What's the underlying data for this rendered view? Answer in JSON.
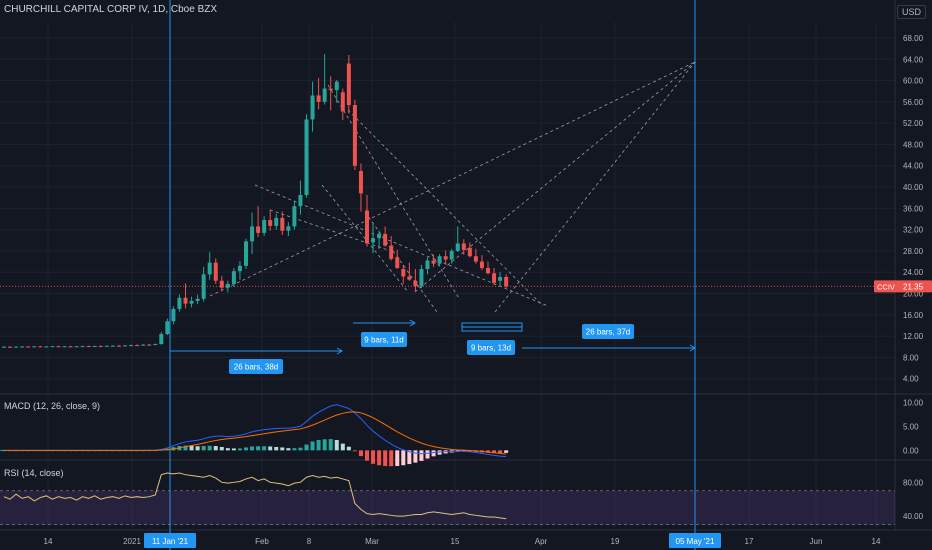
{
  "header": {
    "main_title": "CHURCHILL CAPITAL CORP IV, 1D, Cboe BZX",
    "currency": "USD",
    "macd_title": "MACD (12, 26, close, 9)",
    "rsi_title": "RSI (14, close)"
  },
  "price_badge": {
    "ticker": "CCIV",
    "price": "21.35"
  },
  "colors": {
    "background": "#131722",
    "grid": "#1e222d",
    "up": "#26a69a",
    "down": "#ef5350",
    "macd_line": "#2962ff",
    "signal_line": "#ff6d00",
    "rsi_line": "#e0c27a",
    "rsi_band": "#7e57c2",
    "measure": "#2196f3",
    "pattern_lines": "#b2b5be"
  },
  "measurements": [
    {
      "label": "26 bars, 38d"
    },
    {
      "label": "9 bars, 11d"
    },
    {
      "label": "9 bars, 13d"
    },
    {
      "label": "26 bars, 37d"
    }
  ],
  "chart_data": [
    {
      "type": "candlestick",
      "title": "CHURCHILL CAPITAL CORP IV, 1D, Cboe BZX",
      "y_axis": {
        "ticks": [
          "68.00",
          "64.00",
          "60.00",
          "56.00",
          "52.00",
          "48.00",
          "44.00",
          "40.00",
          "36.00",
          "32.00",
          "28.00",
          "24.00",
          "20.00",
          "16.00",
          "12.00",
          "8.00",
          "4.00"
        ],
        "range": [
          1.5,
          71
        ]
      },
      "x_axis": {
        "ticks": [
          "14",
          "2021",
          "11 Jan '21",
          "Feb",
          "8",
          "Mar",
          "15",
          "Apr",
          "19",
          "05 May '21",
          "17",
          "Jun",
          "14"
        ],
        "highlighted": [
          "11 Jan '21",
          "05 May '21"
        ]
      },
      "grid": true,
      "candles": [
        {
          "o": 9.95,
          "h": 10.1,
          "l": 9.85,
          "c": 10.0
        },
        {
          "o": 10.0,
          "h": 10.1,
          "l": 9.9,
          "c": 9.98
        },
        {
          "o": 9.98,
          "h": 10.08,
          "l": 9.9,
          "c": 10.02
        },
        {
          "o": 10.02,
          "h": 10.12,
          "l": 9.95,
          "c": 10.05
        },
        {
          "o": 10.05,
          "h": 10.1,
          "l": 9.95,
          "c": 10.0
        },
        {
          "o": 10.0,
          "h": 10.15,
          "l": 9.95,
          "c": 10.08
        },
        {
          "o": 10.08,
          "h": 10.15,
          "l": 9.98,
          "c": 10.03
        },
        {
          "o": 10.03,
          "h": 10.12,
          "l": 9.95,
          "c": 10.06
        },
        {
          "o": 10.06,
          "h": 10.15,
          "l": 10.0,
          "c": 10.1
        },
        {
          "o": 10.1,
          "h": 10.2,
          "l": 10.0,
          "c": 10.05
        },
        {
          "o": 10.05,
          "h": 10.15,
          "l": 9.98,
          "c": 10.08
        },
        {
          "o": 10.08,
          "h": 10.15,
          "l": 10.0,
          "c": 10.04
        },
        {
          "o": 10.04,
          "h": 10.15,
          "l": 9.98,
          "c": 10.09
        },
        {
          "o": 10.09,
          "h": 10.18,
          "l": 10.0,
          "c": 10.12
        },
        {
          "o": 10.12,
          "h": 10.2,
          "l": 10.02,
          "c": 10.06
        },
        {
          "o": 10.06,
          "h": 10.18,
          "l": 10.0,
          "c": 10.14
        },
        {
          "o": 10.14,
          "h": 10.25,
          "l": 10.05,
          "c": 10.1
        },
        {
          "o": 10.1,
          "h": 10.22,
          "l": 10.02,
          "c": 10.18
        },
        {
          "o": 10.18,
          "h": 10.3,
          "l": 10.1,
          "c": 10.2
        },
        {
          "o": 10.2,
          "h": 10.35,
          "l": 10.1,
          "c": 10.15
        },
        {
          "o": 10.15,
          "h": 10.3,
          "l": 10.08,
          "c": 10.25
        },
        {
          "o": 10.25,
          "h": 10.4,
          "l": 10.15,
          "c": 10.3
        },
        {
          "o": 10.3,
          "h": 10.45,
          "l": 10.2,
          "c": 10.28
        },
        {
          "o": 10.28,
          "h": 10.5,
          "l": 10.2,
          "c": 10.4
        },
        {
          "o": 10.4,
          "h": 10.55,
          "l": 10.3,
          "c": 10.35
        },
        {
          "o": 10.35,
          "h": 10.6,
          "l": 10.3,
          "c": 10.5
        },
        {
          "o": 10.5,
          "h": 12.8,
          "l": 10.4,
          "c": 12.4
        },
        {
          "o": 12.4,
          "h": 15.3,
          "l": 12.2,
          "c": 14.8
        },
        {
          "o": 14.8,
          "h": 17.6,
          "l": 14.2,
          "c": 17.1
        },
        {
          "o": 17.1,
          "h": 19.8,
          "l": 16.6,
          "c": 19.2
        },
        {
          "o": 19.2,
          "h": 21.9,
          "l": 17.2,
          "c": 18.1
        },
        {
          "o": 18.1,
          "h": 19.4,
          "l": 17.4,
          "c": 18.6
        },
        {
          "o": 18.6,
          "h": 19.8,
          "l": 18.0,
          "c": 19.0
        },
        {
          "o": 19.0,
          "h": 25.0,
          "l": 18.5,
          "c": 23.6
        },
        {
          "o": 23.6,
          "h": 27.8,
          "l": 22.6,
          "c": 25.8
        },
        {
          "o": 25.8,
          "h": 26.6,
          "l": 21.8,
          "c": 22.4
        },
        {
          "o": 22.4,
          "h": 23.3,
          "l": 20.4,
          "c": 21.1
        },
        {
          "o": 21.1,
          "h": 22.4,
          "l": 20.2,
          "c": 21.8
        },
        {
          "o": 21.8,
          "h": 24.8,
          "l": 21.2,
          "c": 24.2
        },
        {
          "o": 24.2,
          "h": 26.1,
          "l": 22.6,
          "c": 25.2
        },
        {
          "o": 25.2,
          "h": 30.3,
          "l": 24.6,
          "c": 29.8
        },
        {
          "o": 29.8,
          "h": 35.2,
          "l": 27.4,
          "c": 32.6
        },
        {
          "o": 32.6,
          "h": 36.4,
          "l": 30.6,
          "c": 31.4
        },
        {
          "o": 31.4,
          "h": 34.5,
          "l": 30.8,
          "c": 33.8
        },
        {
          "o": 33.8,
          "h": 35.8,
          "l": 31.8,
          "c": 32.7
        },
        {
          "o": 32.7,
          "h": 35.0,
          "l": 32.0,
          "c": 34.2
        },
        {
          "o": 34.2,
          "h": 35.4,
          "l": 31.0,
          "c": 31.8
        },
        {
          "o": 31.8,
          "h": 33.4,
          "l": 30.8,
          "c": 32.6
        },
        {
          "o": 32.6,
          "h": 37.5,
          "l": 32.0,
          "c": 36.4
        },
        {
          "o": 36.4,
          "h": 41.2,
          "l": 34.8,
          "c": 38.5
        },
        {
          "o": 38.5,
          "h": 53.7,
          "l": 38.0,
          "c": 52.7
        },
        {
          "o": 52.7,
          "h": 59.8,
          "l": 50.4,
          "c": 57.2
        },
        {
          "o": 57.2,
          "h": 60.5,
          "l": 54.6,
          "c": 56.0
        },
        {
          "o": 56.0,
          "h": 65.0,
          "l": 55.5,
          "c": 58.5
        },
        {
          "o": 58.5,
          "h": 60.8,
          "l": 54.4,
          "c": 58.2
        },
        {
          "o": 58.2,
          "h": 60.1,
          "l": 55.8,
          "c": 59.8
        },
        {
          "o": 57.8,
          "h": 58.5,
          "l": 52.6,
          "c": 54.2
        },
        {
          "o": 63.2,
          "h": 64.8,
          "l": 53.8,
          "c": 55.4
        },
        {
          "o": 55.4,
          "h": 56.4,
          "l": 43.2,
          "c": 44.0
        },
        {
          "o": 43.0,
          "h": 44.4,
          "l": 35.4,
          "c": 38.8
        },
        {
          "o": 35.6,
          "h": 38.5,
          "l": 28.8,
          "c": 29.4
        },
        {
          "o": 29.6,
          "h": 33.2,
          "l": 27.6,
          "c": 30.4
        },
        {
          "o": 30.4,
          "h": 31.8,
          "l": 28.4,
          "c": 31.2
        },
        {
          "o": 31.2,
          "h": 32.6,
          "l": 28.8,
          "c": 29.0
        },
        {
          "o": 29.0,
          "h": 30.8,
          "l": 26.2,
          "c": 26.5
        },
        {
          "o": 26.8,
          "h": 28.2,
          "l": 24.6,
          "c": 24.8
        },
        {
          "o": 24.6,
          "h": 25.4,
          "l": 21.8,
          "c": 23.2
        },
        {
          "o": 23.2,
          "h": 25.8,
          "l": 22.4,
          "c": 22.6
        },
        {
          "o": 22.4,
          "h": 24.6,
          "l": 20.4,
          "c": 21.4
        },
        {
          "o": 21.4,
          "h": 25.4,
          "l": 21.0,
          "c": 24.6
        },
        {
          "o": 24.6,
          "h": 26.8,
          "l": 23.6,
          "c": 26.2
        },
        {
          "o": 26.2,
          "h": 27.3,
          "l": 25.0,
          "c": 25.6
        },
        {
          "o": 25.6,
          "h": 27.4,
          "l": 25.2,
          "c": 27.0
        },
        {
          "o": 27.0,
          "h": 28.1,
          "l": 25.4,
          "c": 26.4
        },
        {
          "o": 26.4,
          "h": 28.4,
          "l": 25.6,
          "c": 28.0
        },
        {
          "o": 28.0,
          "h": 32.6,
          "l": 27.8,
          "c": 29.4
        },
        {
          "o": 29.4,
          "h": 30.2,
          "l": 27.3,
          "c": 28.2
        },
        {
          "o": 28.6,
          "h": 29.6,
          "l": 26.8,
          "c": 27.0
        },
        {
          "o": 27.0,
          "h": 28.4,
          "l": 25.6,
          "c": 26.0
        },
        {
          "o": 26.0,
          "h": 27.2,
          "l": 24.4,
          "c": 24.8
        },
        {
          "o": 24.8,
          "h": 26.0,
          "l": 23.6,
          "c": 23.8
        },
        {
          "o": 23.8,
          "h": 24.8,
          "l": 21.6,
          "c": 22.0
        },
        {
          "o": 22.4,
          "h": 24.0,
          "l": 21.4,
          "c": 23.1
        },
        {
          "o": 23.1,
          "h": 23.6,
          "l": 21.0,
          "c": 21.35
        }
      ]
    },
    {
      "type": "line",
      "title": "MACD (12, 26, close, 9)",
      "y_axis": {
        "ticks": [
          "10.00",
          "5.00",
          "0.00"
        ],
        "range": [
          -1.8,
          11.3
        ]
      },
      "series": [
        {
          "name": "MACD",
          "values": [
            0,
            0,
            0,
            0,
            0,
            0,
            0,
            0,
            0,
            0,
            0,
            0,
            0,
            0,
            0,
            0,
            0,
            0,
            0,
            0,
            0,
            0,
            0,
            0,
            0.02,
            0.04,
            0.2,
            0.5,
            0.95,
            1.4,
            1.75,
            1.95,
            2.1,
            2.4,
            2.75,
            2.95,
            2.95,
            2.85,
            2.95,
            3.1,
            3.45,
            3.85,
            4.1,
            4.3,
            4.45,
            4.55,
            4.6,
            4.6,
            4.75,
            5.0,
            6.0,
            7.1,
            7.9,
            8.6,
            9.2,
            9.5,
            9.1,
            8.7,
            7.8,
            6.6,
            5.2,
            4.0,
            3.0,
            2.1,
            1.3,
            0.6,
            0.1,
            -0.3,
            -0.55,
            -0.7,
            -0.6,
            -0.45,
            -0.35,
            -0.3,
            -0.25,
            -0.2,
            -0.2,
            -0.3,
            -0.45,
            -0.65,
            -0.85,
            -1.05,
            -1.2,
            -1.3
          ]
        },
        {
          "name": "Signal",
          "values": [
            0,
            0,
            0,
            0,
            0,
            0,
            0,
            0,
            0,
            0,
            0,
            0,
            0,
            0,
            0,
            0,
            0,
            0,
            0,
            0,
            0,
            0,
            0,
            0,
            0,
            0.01,
            0.05,
            0.15,
            0.3,
            0.5,
            0.75,
            1.0,
            1.25,
            1.5,
            1.8,
            2.05,
            2.25,
            2.4,
            2.55,
            2.7,
            2.85,
            3.05,
            3.25,
            3.45,
            3.65,
            3.85,
            4.0,
            4.15,
            4.3,
            4.45,
            4.8,
            5.25,
            5.75,
            6.3,
            6.85,
            7.35,
            7.7,
            7.95,
            8.0,
            7.8,
            7.35,
            6.8,
            6.1,
            5.35,
            4.6,
            3.85,
            3.2,
            2.55,
            2.0,
            1.5,
            1.1,
            0.8,
            0.55,
            0.35,
            0.2,
            0.1,
            0.05,
            -0.03,
            -0.12,
            -0.23,
            -0.36,
            -0.5,
            -0.64,
            -0.78
          ]
        },
        {
          "name": "Histogram",
          "values": [
            0,
            0,
            0,
            0,
            0,
            0,
            0,
            0,
            0,
            0,
            0,
            0,
            0,
            0,
            0,
            0,
            0,
            0,
            0,
            0,
            0,
            0,
            0,
            0,
            0.02,
            0.03,
            0.15,
            0.35,
            0.65,
            0.9,
            1.0,
            0.95,
            0.85,
            0.9,
            0.95,
            0.9,
            0.7,
            0.45,
            0.4,
            0.4,
            0.6,
            0.8,
            0.85,
            0.85,
            0.8,
            0.7,
            0.6,
            0.45,
            0.45,
            0.55,
            1.2,
            1.85,
            2.15,
            2.3,
            2.35,
            2.15,
            1.4,
            0.75,
            -0.2,
            -1.2,
            -2.15,
            -2.8,
            -3.1,
            -3.25,
            -3.3,
            -3.25,
            -3.1,
            -2.85,
            -2.55,
            -2.2,
            -1.7,
            -1.25,
            -0.9,
            -0.65,
            -0.45,
            -0.3,
            -0.25,
            -0.27,
            -0.33,
            -0.42,
            -0.49,
            -0.55,
            -0.56,
            -0.52
          ]
        }
      ]
    },
    {
      "type": "line",
      "title": "RSI (14, close)",
      "y_axis": {
        "ticks": [
          "80.00",
          "40.00"
        ],
        "range": [
          26,
          104
        ],
        "band": [
          30,
          70
        ]
      },
      "series": [
        {
          "name": "RSI",
          "values": [
            63,
            60,
            66,
            61,
            63,
            58,
            62,
            64,
            60,
            63,
            61,
            62,
            59,
            63,
            61,
            64,
            60,
            62,
            63,
            61,
            64,
            62,
            63,
            62,
            63,
            65,
            89,
            91,
            90,
            91,
            89,
            88,
            87,
            86,
            88,
            85,
            80,
            79,
            80,
            81,
            84,
            86,
            82,
            84,
            80,
            79,
            78,
            76,
            79,
            80,
            86,
            88,
            86,
            87,
            85,
            86,
            84,
            82,
            55,
            48,
            43,
            42,
            43,
            42,
            41,
            40,
            40,
            41,
            42,
            42,
            44,
            45,
            44,
            43,
            42,
            43,
            44,
            42,
            41,
            40,
            39,
            39,
            38,
            37
          ]
        }
      ]
    }
  ]
}
